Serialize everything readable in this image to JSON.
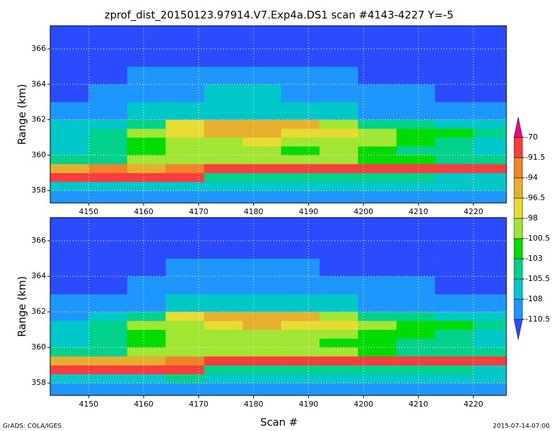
{
  "title": "zprof_dist_20150123.97914.V7.Exp4a.DS1   scan #4143-4227 Y=-5",
  "xlabel": "Scan #",
  "footer_left": "GrADS: COLA/IGES",
  "footer_right": "2015-07-14-07:00",
  "colorbar": {
    "levels": [
      -110.5,
      -108,
      -105.5,
      -103,
      -100.5,
      -98,
      -96.5,
      -94,
      -91.5,
      -70
    ],
    "colors": [
      "#2a4bff",
      "#1e96ff",
      "#00c8c8",
      "#00d28c",
      "#00dc00",
      "#a0e632",
      "#e6dc32",
      "#e6af2d",
      "#f08228",
      "#fa3c3c",
      "#f00082"
    ]
  },
  "chart_data": [
    {
      "type": "heatmap",
      "ylabel": "Range (km)",
      "xlim": [
        4143,
        4226
      ],
      "ylim": [
        357.3,
        367.3
      ],
      "xticks": [
        4150,
        4160,
        4170,
        4180,
        4190,
        4200,
        4210,
        4220
      ],
      "yticks": [
        358,
        360,
        362,
        364,
        366
      ],
      "grid": true,
      "x_edges": [
        4143,
        4150,
        4157,
        4164,
        4171,
        4178,
        4185,
        4192,
        4199,
        4206,
        4213,
        4220,
        4226
      ],
      "y_edges": [
        357.3,
        358,
        358.5,
        359,
        359.5,
        360,
        360.5,
        361,
        361.5,
        362,
        363,
        364,
        365,
        366,
        367.3
      ],
      "z": [
        [
          -109,
          -109,
          -110,
          -109,
          -109,
          -109,
          -110,
          -109,
          -109,
          -109,
          -109,
          -110
        ],
        [
          -107,
          -106,
          -107,
          -106,
          -106,
          -107,
          -106,
          -106,
          -107,
          -106,
          -106,
          -107
        ],
        [
          -85,
          -85,
          -85,
          -88,
          -104,
          -105,
          -104,
          -104,
          -104,
          -105,
          -106,
          -106
        ],
        [
          -95,
          -93,
          -96,
          -93,
          -87,
          -86,
          -85,
          -85,
          -86,
          -86,
          -86,
          -87
        ],
        [
          -104,
          -103,
          -99,
          -99,
          -99,
          -98,
          -100,
          -99,
          -101,
          -102,
          -104,
          -105
        ],
        [
          -106,
          -104,
          -101,
          -100,
          -100,
          -99,
          -101,
          -100,
          -101,
          -103,
          -104,
          -106
        ],
        [
          -106,
          -105,
          -102,
          -100,
          -99,
          -97,
          -100,
          -99,
          -100,
          -102,
          -104,
          -106
        ],
        [
          -106,
          -104,
          -100,
          -97,
          -96,
          -96,
          -97,
          -97,
          -99,
          -101,
          -102,
          -103
        ],
        [
          -107,
          -106,
          -104,
          -97,
          -95,
          -95,
          -96,
          -98,
          -104,
          -105,
          -106,
          -106
        ],
        [
          -109,
          -108,
          -107,
          -107,
          -106,
          -106,
          -106,
          -107,
          -108,
          -108,
          -109,
          -110
        ],
        [
          -111,
          -110,
          -109,
          -108,
          -107,
          -107,
          -108,
          -108,
          -109,
          -110,
          -111,
          -111
        ],
        [
          -112,
          -111,
          -110,
          -110,
          -109,
          -109,
          -110,
          -110,
          -111,
          -111,
          -112,
          -112
        ],
        [
          -112,
          -112,
          -111,
          -111,
          -111,
          -111,
          -111,
          -112,
          -112,
          -112,
          -112,
          -112
        ],
        [
          -112,
          -112,
          -112,
          -112,
          -112,
          -112,
          -112,
          -112,
          -112,
          -112,
          -112,
          -112
        ]
      ]
    },
    {
      "type": "heatmap",
      "ylabel": "Range (km)",
      "xlim": [
        4143,
        4226
      ],
      "ylim": [
        357.3,
        367.3
      ],
      "xticks": [
        4150,
        4160,
        4170,
        4180,
        4190,
        4200,
        4210,
        4220
      ],
      "yticks": [
        358,
        360,
        362,
        364,
        366
      ],
      "grid": true,
      "x_edges": [
        4143,
        4150,
        4157,
        4164,
        4171,
        4178,
        4185,
        4192,
        4199,
        4206,
        4213,
        4220,
        4226
      ],
      "y_edges": [
        357.3,
        358,
        358.5,
        359,
        359.5,
        360,
        360.5,
        361,
        361.5,
        362,
        363,
        364,
        365,
        366,
        367.3
      ],
      "z": [
        [
          -109,
          -110,
          -109,
          -109,
          -110,
          -109,
          -109,
          -109,
          -110,
          -109,
          -110,
          -110
        ],
        [
          -106,
          -106,
          -107,
          -105,
          -106,
          -106,
          -106,
          -107,
          -106,
          -106,
          -107,
          -107
        ],
        [
          -86,
          -85,
          -86,
          -89,
          -104,
          -104,
          -105,
          -104,
          -105,
          -104,
          -105,
          -106
        ],
        [
          -96,
          -94,
          -95,
          -93,
          -88,
          -86,
          -86,
          -85,
          -85,
          -86,
          -86,
          -88
        ],
        [
          -105,
          -103,
          -100,
          -99,
          -98,
          -99,
          -99,
          -100,
          -101,
          -103,
          -104,
          -105
        ],
        [
          -106,
          -105,
          -101,
          -99,
          -100,
          -98,
          -100,
          -101,
          -101,
          -103,
          -105,
          -106
        ],
        [
          -107,
          -105,
          -101,
          -100,
          -99,
          -98,
          -99,
          -100,
          -101,
          -102,
          -105,
          -106
        ],
        [
          -106,
          -105,
          -100,
          -98,
          -97,
          -96,
          -97,
          -97,
          -100,
          -101,
          -102,
          -104
        ],
        [
          -108,
          -106,
          -103,
          -97,
          -96,
          -96,
          -96,
          -98,
          -104,
          -105,
          -106,
          -107
        ],
        [
          -110,
          -109,
          -108,
          -107,
          -107,
          -106,
          -107,
          -107,
          -108,
          -109,
          -109,
          -110
        ],
        [
          -111,
          -111,
          -110,
          -109,
          -108,
          -108,
          -108,
          -109,
          -110,
          -110,
          -111,
          -111
        ],
        [
          -112,
          -111,
          -111,
          -110,
          -110,
          -110,
          -110,
          -111,
          -111,
          -112,
          -112,
          -112
        ],
        [
          -112,
          -112,
          -112,
          -111,
          -111,
          -111,
          -112,
          -112,
          -112,
          -112,
          -112,
          -112
        ],
        [
          -112,
          -112,
          -112,
          -112,
          -112,
          -112,
          -112,
          -112,
          -112,
          -112,
          -112,
          -112
        ]
      ]
    }
  ]
}
